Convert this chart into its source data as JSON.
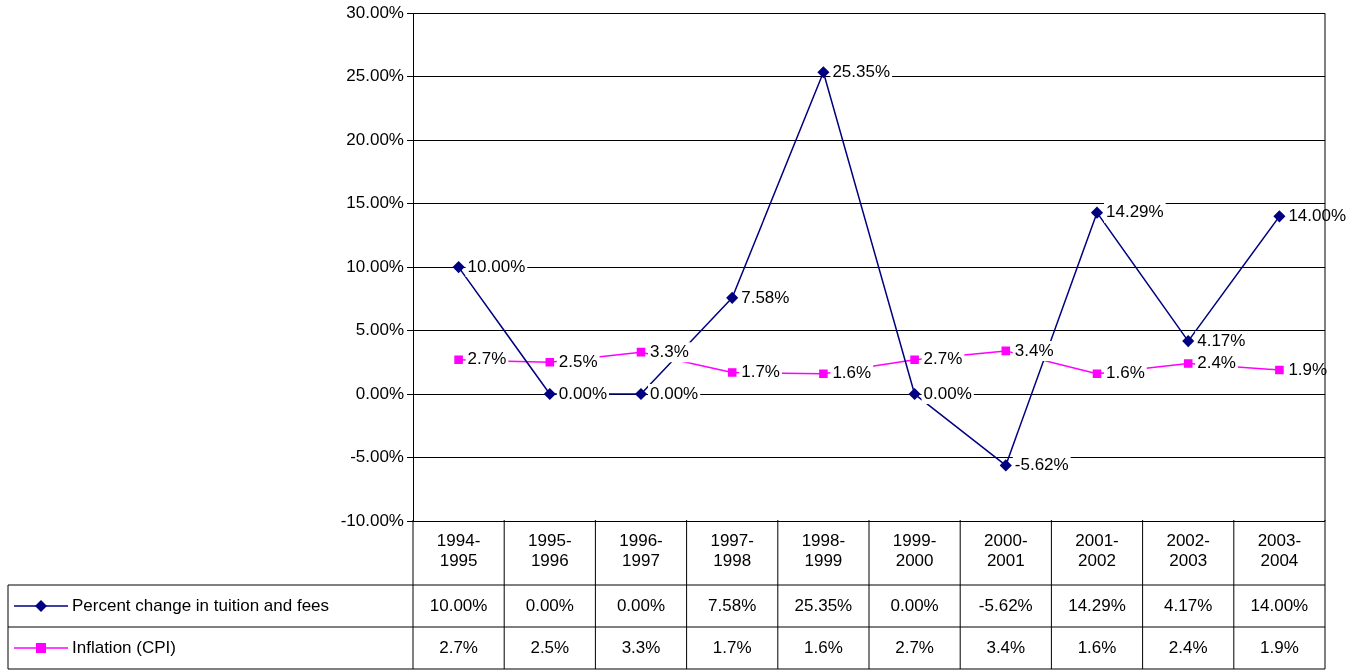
{
  "chart_data": {
    "type": "line",
    "categories": [
      "1994-1995",
      "1995-1996",
      "1996-1997",
      "1997-1998",
      "1998-1999",
      "1999-2000",
      "2000-2001",
      "2001-2002",
      "2002-2003",
      "2003-2004"
    ],
    "series": [
      {
        "name": "Percent change in tuition and fees",
        "color": "#000080",
        "marker": "diamond",
        "values": [
          10,
          0,
          0,
          7.58,
          25.35,
          0,
          -5.62,
          14.29,
          4.17,
          14
        ],
        "value_labels": [
          "10.00%",
          "0.00%",
          "0.00%",
          "7.58%",
          "25.35%",
          "0.00%",
          "-5.62%",
          "14.29%",
          "4.17%",
          "14.00%"
        ]
      },
      {
        "name": "Inflation (CPI)",
        "color": "#ff00ff",
        "marker": "square",
        "values": [
          2.7,
          2.5,
          3.3,
          1.7,
          1.6,
          2.7,
          3.4,
          1.6,
          2.4,
          1.9
        ],
        "value_labels": [
          "2.7%",
          "2.5%",
          "3.3%",
          "1.7%",
          "1.6%",
          "2.7%",
          "3.4%",
          "1.6%",
          "2.4%",
          "1.9%"
        ]
      }
    ],
    "ylim": [
      -10,
      30
    ],
    "yticks": [
      {
        "value": -10,
        "label": "-10.00%"
      },
      {
        "value": -5,
        "label": "-5.00%"
      },
      {
        "value": 0,
        "label": "0.00%"
      },
      {
        "value": 5,
        "label": "5.00%"
      },
      {
        "value": 10,
        "label": "10.00%"
      },
      {
        "value": 15,
        "label": "15.00%"
      },
      {
        "value": 20,
        "label": "20.00%"
      },
      {
        "value": 25,
        "label": "25.00%"
      },
      {
        "value": 30,
        "label": "30.00%"
      }
    ],
    "grid": "y",
    "legend": "bottom",
    "line_style": "solid"
  }
}
